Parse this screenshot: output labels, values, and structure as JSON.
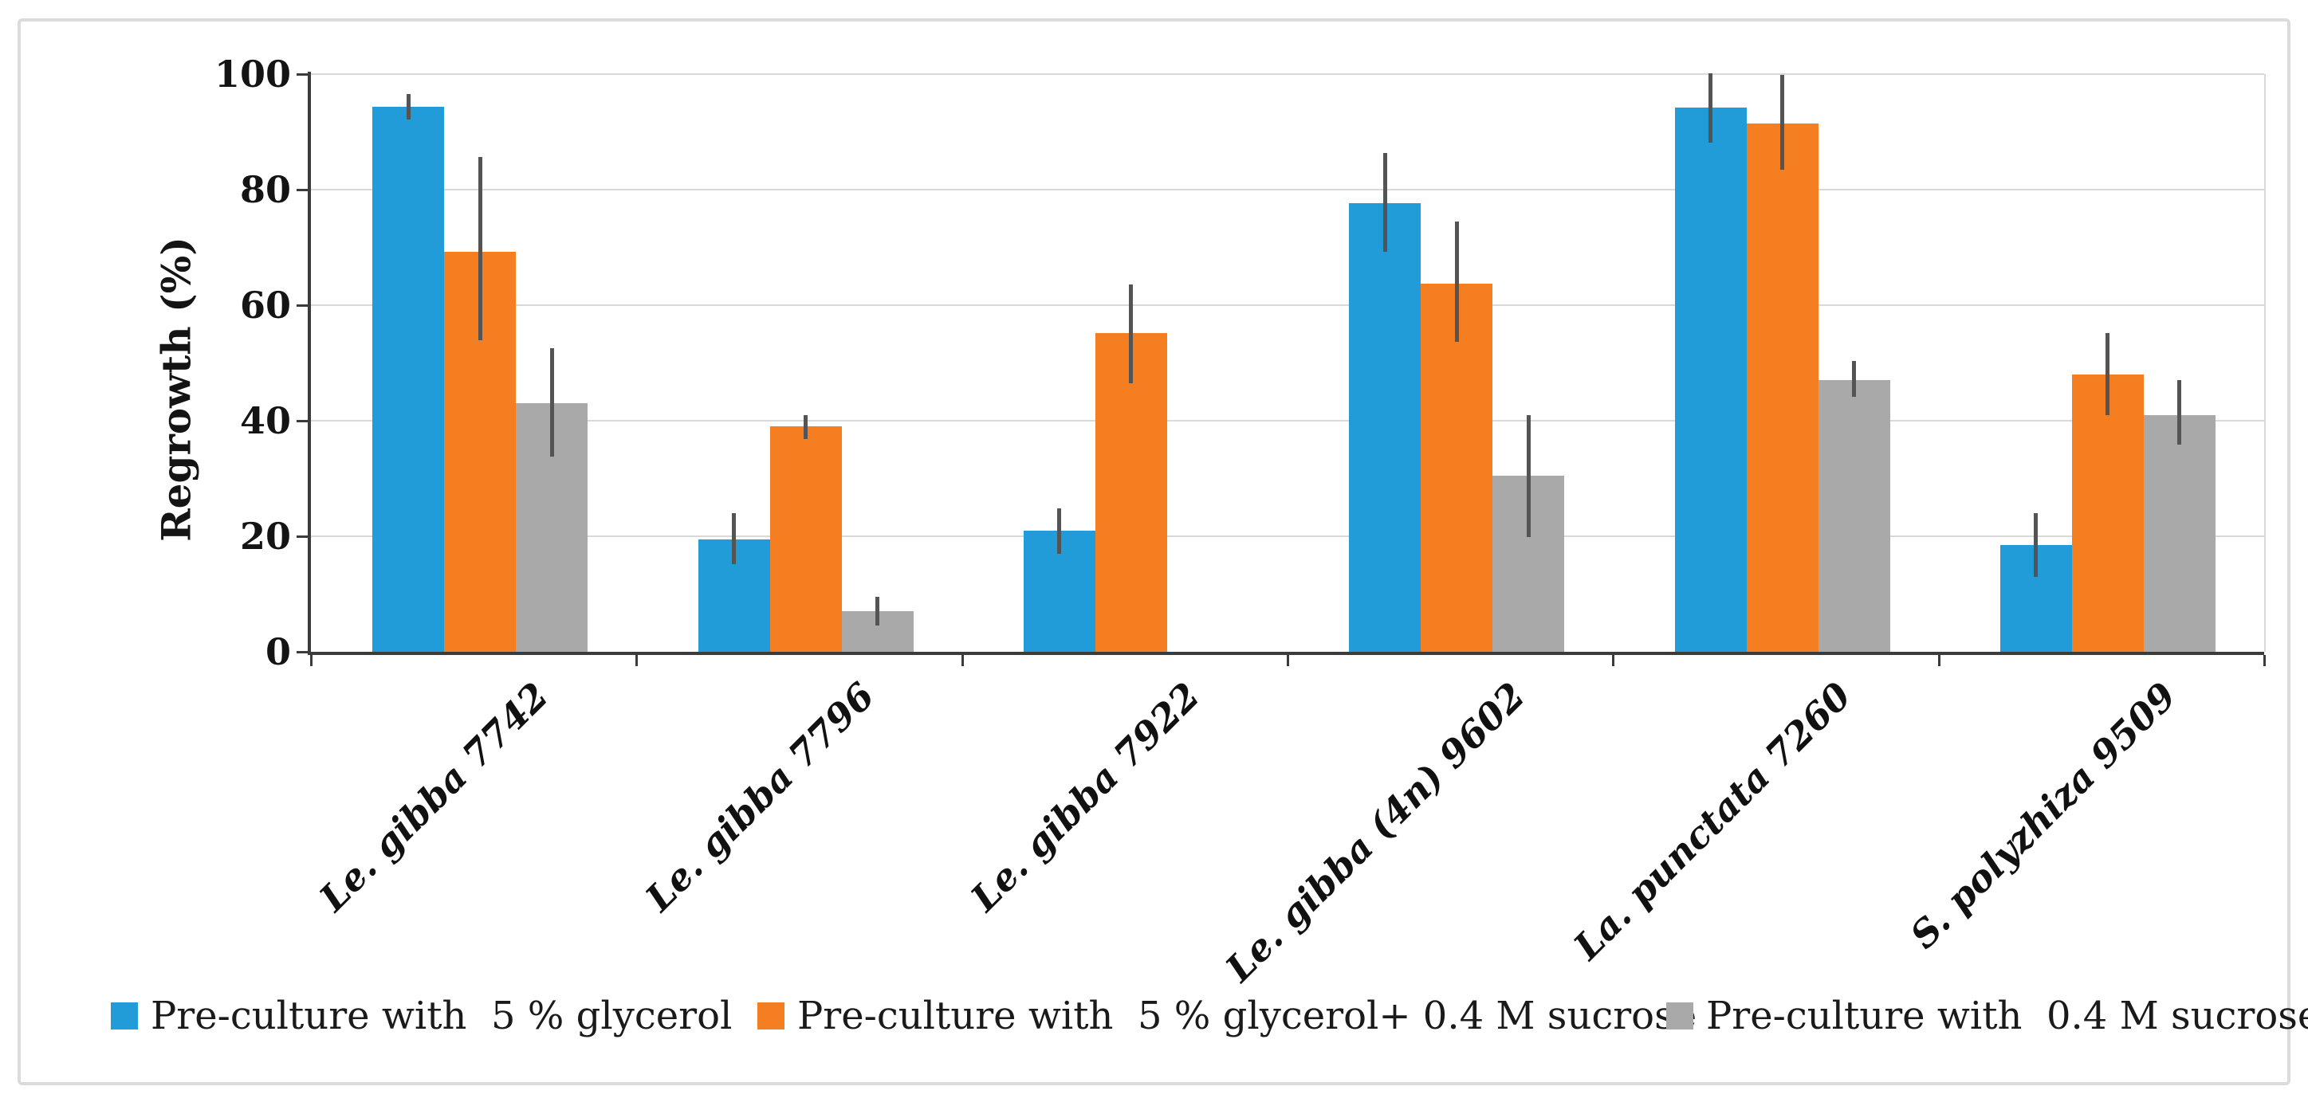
{
  "chart_data": {
    "type": "bar",
    "title": "",
    "xlabel": "",
    "ylabel": "Regrowth (%)",
    "ylim": [
      0,
      100
    ],
    "y_ticks": [
      0,
      20,
      40,
      60,
      80,
      100
    ],
    "grid": "horizontal",
    "legend_position": "bottom",
    "categories": [
      "Le. gibba 7742",
      "Le. gibba 7796",
      "Le. gibba 7922",
      "Le. gibba (4n) 9602",
      "La. punctata  7260",
      "S. polyzhiza 9509"
    ],
    "series": [
      {
        "name": "Pre-culture with  5 % glycerol",
        "color": "#219cd9",
        "values": [
          94.4,
          19.5,
          20.9,
          77.6,
          94.2,
          18.5
        ],
        "error_low": [
          92.2,
          15.2,
          17.0,
          69.2,
          88.1,
          13.0
        ],
        "error_high": [
          96.5,
          24.0,
          24.8,
          86.4,
          100.2,
          24.0
        ]
      },
      {
        "name": "Pre-culture with  5 % glycerol+ 0.4 M sucrose",
        "color": "#f57e20",
        "values": [
          69.2,
          39.0,
          55.2,
          63.7,
          91.4,
          48.0
        ],
        "error_low": [
          53.9,
          36.8,
          46.5,
          53.6,
          83.4,
          41.0
        ],
        "error_high": [
          85.7,
          40.9,
          63.6,
          74.5,
          99.9,
          55.2
        ]
      },
      {
        "name": "Pre-culture with  0.4 M sucrose",
        "color": "#a9a9a9",
        "values": [
          43.0,
          7.0,
          null,
          30.5,
          47.0,
          41.0
        ],
        "error_low": [
          33.8,
          4.6,
          null,
          19.8,
          44.2,
          35.8
        ],
        "error_high": [
          52.5,
          9.5,
          null,
          40.9,
          50.3,
          47.0
        ]
      }
    ],
    "error_bar_color": "#545454",
    "gridline_color": "#d9d9d9",
    "axis_color": "#3b3b3b"
  }
}
